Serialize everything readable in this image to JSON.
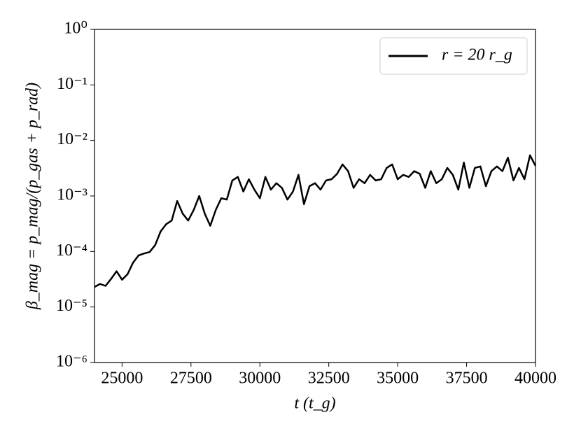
{
  "chart_data": {
    "type": "line",
    "xlabel": "t (t_g)",
    "ylabel": "β_mag = p_mag/(p_gas + p_rad)",
    "x": [
      24000,
      24200,
      24400,
      24600,
      24800,
      25000,
      25200,
      25400,
      25600,
      25800,
      26000,
      26200,
      26400,
      26600,
      26800,
      27000,
      27200,
      27400,
      27600,
      27800,
      28000,
      28200,
      28400,
      28600,
      28800,
      29000,
      29200,
      29400,
      29600,
      29800,
      30000,
      30200,
      30400,
      30600,
      30800,
      31000,
      31200,
      31400,
      31600,
      31800,
      32000,
      32200,
      32400,
      32600,
      32800,
      33000,
      33200,
      33400,
      33600,
      33800,
      34000,
      34200,
      34400,
      34600,
      34800,
      35000,
      35200,
      35400,
      35600,
      35800,
      36000,
      36200,
      36400,
      36600,
      36800,
      37000,
      37200,
      37400,
      37600,
      37800,
      38000,
      38200,
      38400,
      38600,
      38800,
      39000,
      39200,
      39400,
      39600,
      39800,
      40000
    ],
    "series": [
      {
        "name": "r = 20 r_g",
        "color": "#000000",
        "values": [
          2.3e-05,
          2.6e-05,
          2.4e-05,
          3.2e-05,
          4.4e-05,
          3.1e-05,
          3.9e-05,
          6.3e-05,
          8.5e-05,
          9.2e-05,
          9.8e-05,
          0.00013,
          0.00023,
          0.00031,
          0.00036,
          0.00081,
          0.00048,
          0.00036,
          0.00056,
          0.001,
          0.00048,
          0.00029,
          0.00056,
          0.00091,
          0.00086,
          0.0019,
          0.0022,
          0.0012,
          0.002,
          0.0013,
          0.00091,
          0.0022,
          0.0013,
          0.0017,
          0.0014,
          0.00086,
          0.0012,
          0.0024,
          0.00071,
          0.0015,
          0.0017,
          0.0013,
          0.0019,
          0.002,
          0.0025,
          0.0037,
          0.0028,
          0.0014,
          0.002,
          0.0017,
          0.0024,
          0.0019,
          0.002,
          0.0032,
          0.0037,
          0.002,
          0.0024,
          0.0022,
          0.0028,
          0.0025,
          0.0014,
          0.0028,
          0.0017,
          0.002,
          0.0032,
          0.0024,
          0.0013,
          0.004,
          0.0014,
          0.0032,
          0.0034,
          0.0015,
          0.0028,
          0.0034,
          0.0028,
          0.0049,
          0.0019,
          0.0032,
          0.002,
          0.0054,
          0.0035
        ]
      }
    ],
    "xlim": [
      24000,
      40000
    ],
    "xticks": [
      25000,
      27500,
      30000,
      32500,
      35000,
      37500,
      40000
    ],
    "ylim": [
      1e-06,
      1
    ],
    "yticks": [
      {
        "value": 1e-06,
        "label": "10⁻⁶"
      },
      {
        "value": 1e-05,
        "label": "10⁻⁵"
      },
      {
        "value": 0.0001,
        "label": "10⁻⁴"
      },
      {
        "value": 0.001,
        "label": "10⁻³"
      },
      {
        "value": 0.01,
        "label": "10⁻²"
      },
      {
        "value": 0.1,
        "label": "10⁻¹"
      },
      {
        "value": 1,
        "label": "10⁰"
      }
    ],
    "yscale": "log",
    "legend": "upper right"
  }
}
